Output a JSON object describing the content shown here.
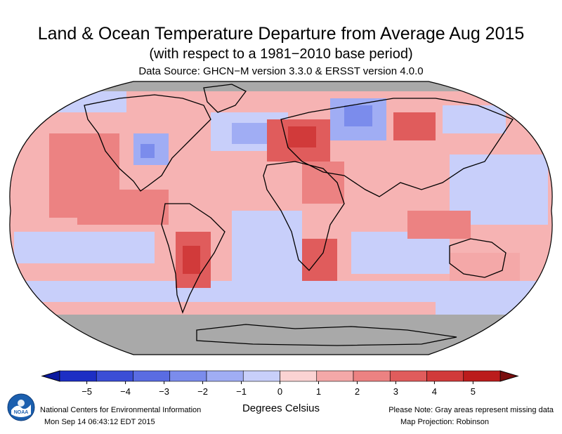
{
  "title": "Land & Ocean Temperature Departure from Average Aug 2015",
  "subtitle": "(with respect to a 1981−2010 base period)",
  "source": "Data Source: GHCN−M version 3.3.0 & ERSST version 4.0.0",
  "colorbar": {
    "ticks": [
      "−5",
      "−4",
      "−3",
      "−2",
      "−1",
      "0",
      "1",
      "2",
      "3",
      "4",
      "5"
    ],
    "colors": [
      "#1d2ec4",
      "#3b4ed6",
      "#5a6ce2",
      "#7b8cec",
      "#a0adf4",
      "#c8cffa",
      "#fbd3d3",
      "#f4a8a8",
      "#ec8282",
      "#e05c5c",
      "#d13a3a",
      "#bb1c1c"
    ],
    "missing_color": "#a9a9a9",
    "unit_label": "Degrees Celsius"
  },
  "footer": {
    "organization": "National Centers for Environmental Information",
    "timestamp": "Mon Sep 14 06:43:12 EDT 2015",
    "note": "Please Note: Gray areas represent missing data",
    "projection": "Map Projection: Robinson"
  },
  "logo": {
    "text": "NOAA",
    "icon": "noaa-logo-icon"
  }
}
